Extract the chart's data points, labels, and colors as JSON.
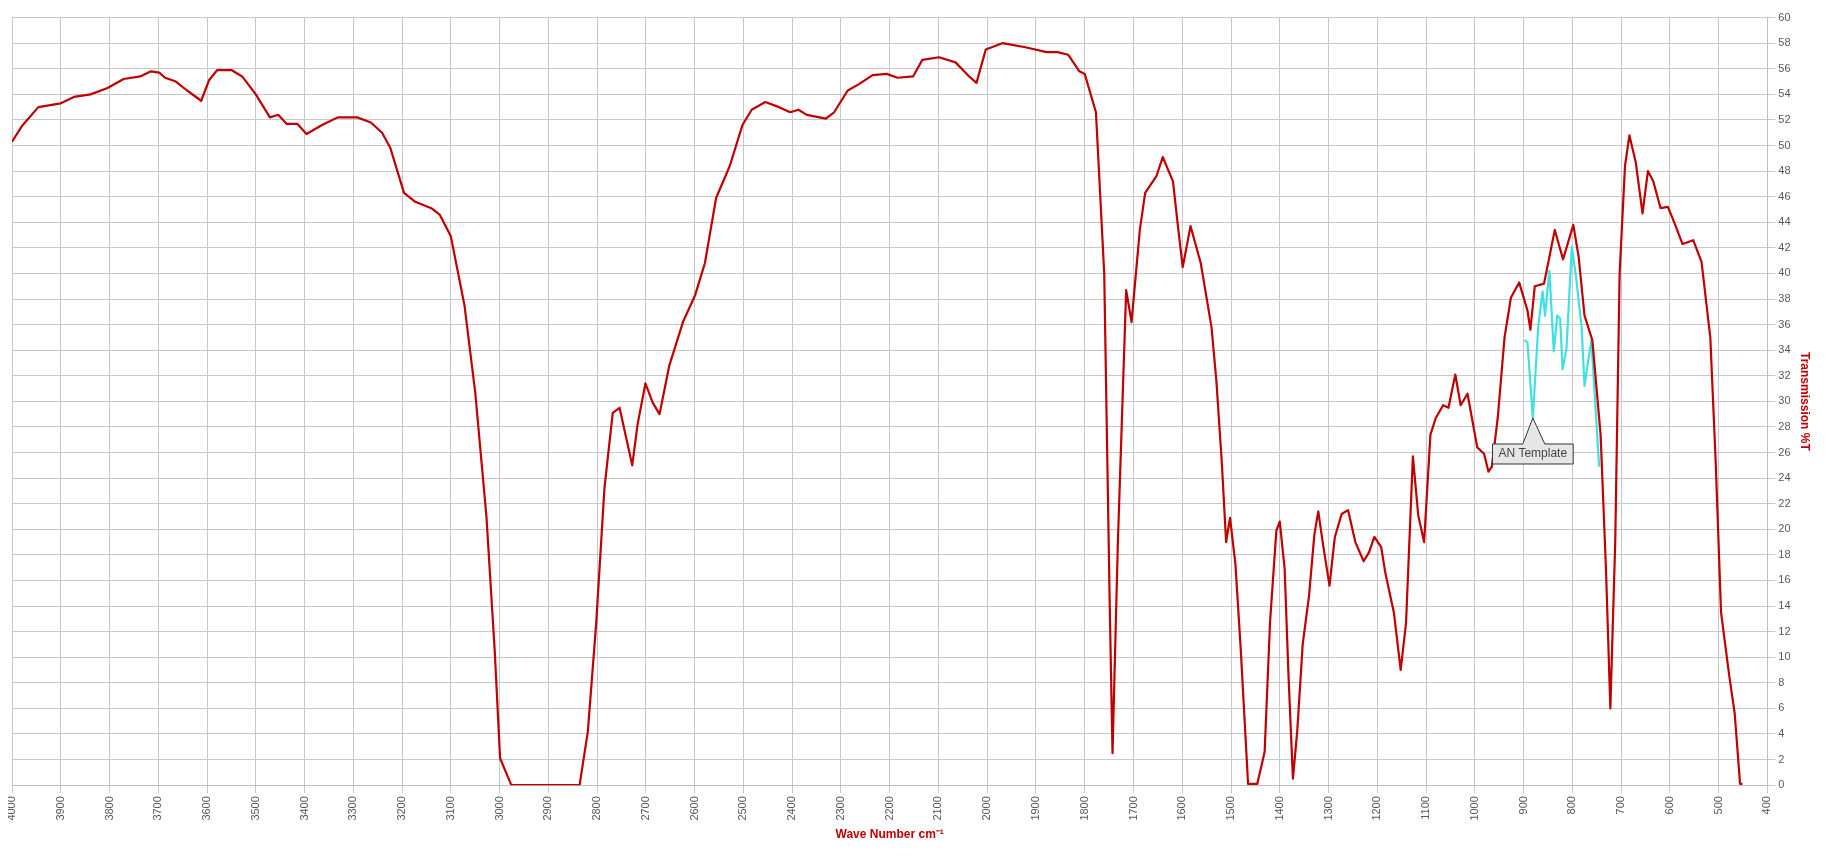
{
  "chart_data": {
    "type": "line",
    "xlabel": "Wave Number cm⁻¹",
    "ylabel": "Transmission %T",
    "xlim": [
      4000,
      400
    ],
    "ylim": [
      0,
      60
    ],
    "xticks": [
      4000,
      3900,
      3800,
      3700,
      3600,
      3500,
      3400,
      3300,
      3200,
      3100,
      3000,
      2900,
      2800,
      2700,
      2600,
      2500,
      2400,
      2300,
      2200,
      2100,
      2000,
      1900,
      1800,
      1700,
      1600,
      1500,
      1400,
      1300,
      1200,
      1100,
      1000,
      900,
      800,
      700,
      600,
      500,
      400
    ],
    "yticks": [
      0,
      2,
      4,
      6,
      8,
      10,
      12,
      14,
      16,
      18,
      20,
      22,
      24,
      26,
      28,
      30,
      32,
      34,
      36,
      38,
      40,
      42,
      44,
      46,
      48,
      50,
      52,
      54,
      56,
      58,
      60
    ],
    "grid": true,
    "legend": false,
    "marker": "none",
    "line_style": "solid",
    "annotations": [
      {
        "text": "AN Template",
        "x": 881,
        "y": 28.7
      }
    ],
    "series": [
      {
        "color": "#c00000",
        "x": [
          4000,
          3980,
          3946,
          3900,
          3873,
          3839,
          3804,
          3771,
          3737,
          3715,
          3698,
          3686,
          3664,
          3641,
          3612,
          3596,
          3579,
          3550,
          3528,
          3500,
          3471,
          3454,
          3437,
          3415,
          3396,
          3364,
          3332,
          3292,
          3264,
          3241,
          3224,
          3196,
          3173,
          3140,
          3123,
          3100,
          3072,
          3050,
          3027,
          3010,
          2999,
          2976,
          2836,
          2819,
          2802,
          2785,
          2768,
          2754,
          2728,
          2717,
          2701,
          2686,
          2672,
          2652,
          2624,
          2599,
          2579,
          2556,
          2528,
          2502,
          2483,
          2455,
          2427,
          2404,
          2387,
          2370,
          2331,
          2314,
          2286,
          2263,
          2235,
          2206,
          2184,
          2152,
          2133,
          2099,
          2065,
          2037,
          2022,
          2003,
          1969,
          1924,
          1878,
          1856,
          1834,
          1811,
          1800,
          1777,
          1760,
          1749,
          1743,
          1732,
          1715,
          1704,
          1687,
          1676,
          1653,
          1640,
          1619,
          1608,
          1599,
          1583,
          1562,
          1540,
          1530,
          1519,
          1510,
          1502,
          1491,
          1480,
          1465,
          1446,
          1431,
          1420,
          1407,
          1400,
          1390,
          1382,
          1373,
          1364,
          1353,
          1340,
          1329,
          1321,
          1312,
          1298,
          1287,
          1273,
          1260,
          1245,
          1228,
          1217,
          1206,
          1192,
          1183,
          1166,
          1152,
          1141,
          1127,
          1116,
          1104,
          1091,
          1080,
          1065,
          1054,
          1040,
          1029,
          1015,
          995,
          981,
          972,
          965,
          953,
          939,
          926,
          909,
          892,
          886,
          877,
          858,
          836,
          819,
          798,
          787,
          775,
          759,
          742,
          731,
          722,
          712,
          703,
          692,
          683,
          670,
          656,
          645,
          634,
          619,
          604,
          589,
          574,
          552,
          535,
          517,
          506,
          495,
          478,
          467,
          456,
          451
        ],
        "values": [
          50.3,
          51.5,
          53,
          53.3,
          53.8,
          54,
          54.5,
          55.2,
          55.4,
          55.8,
          55.7,
          55.3,
          55,
          54.3,
          53.5,
          55.1,
          55.9,
          55.9,
          55.4,
          54,
          52.2,
          52.4,
          51.7,
          51.7,
          50.9,
          51.6,
          52.2,
          52.2,
          51.8,
          51,
          49.8,
          46.3,
          45.6,
          45.1,
          44.6,
          42.9,
          37.5,
          30.7,
          21,
          10.5,
          2.1,
          0,
          0,
          4.2,
          12.6,
          23.2,
          29.1,
          29.5,
          25,
          28.2,
          31.4,
          29.9,
          29,
          32.8,
          36.2,
          38.3,
          40.8,
          45.9,
          48.4,
          51.6,
          52.8,
          53.4,
          53,
          52.6,
          52.8,
          52.4,
          52.1,
          52.6,
          54.3,
          54.8,
          55.5,
          55.6,
          55.3,
          55.4,
          56.7,
          56.9,
          56.5,
          55.4,
          54.9,
          57.5,
          58,
          57.7,
          57.3,
          57.3,
          57.1,
          55.8,
          55.6,
          52.6,
          40,
          14.7,
          2.5,
          19,
          38.7,
          36.2,
          43.4,
          46.3,
          47.6,
          49.1,
          47.2,
          43.4,
          40.5,
          43.7,
          40.8,
          35.8,
          31.6,
          25.3,
          19,
          20.9,
          17.3,
          10.6,
          0.1,
          0.1,
          2.6,
          12.7,
          19.9,
          20.6,
          16.9,
          8.5,
          0.5,
          4.3,
          11,
          14.8,
          19.6,
          21.4,
          19,
          15.6,
          19.4,
          21.2,
          21.5,
          19,
          17.5,
          18.2,
          19.4,
          18.6,
          16.5,
          13.5,
          9,
          12.7,
          25.7,
          21.1,
          19,
          27.4,
          28.7,
          29.7,
          29.5,
          32.1,
          29.7,
          30.6,
          26.4,
          25.9,
          24.5,
          24.9,
          28.7,
          35,
          38.1,
          39.3,
          37.1,
          35.6,
          39,
          39.2,
          43.4,
          41.1,
          43.8,
          41.3,
          36.7,
          34.8,
          27.4,
          16.9,
          6,
          19,
          40,
          48.4,
          50.8,
          48.7,
          44.7,
          48,
          47.2,
          45.1,
          45.2,
          43.8,
          42.3,
          42.6,
          40.9,
          35,
          25.3,
          13.5,
          8.5,
          5.6,
          0.1,
          0.1
        ]
      },
      {
        "color": "#40e0e0",
        "x": [
          898,
          892,
          881,
          870,
          861,
          856,
          847,
          838,
          831,
          825,
          820,
          812,
          801,
          792,
          781,
          775,
          770,
          761,
          753,
          745
        ],
        "values": [
          34.8,
          34.6,
          28.7,
          35.8,
          38.6,
          36.7,
          40.2,
          33.9,
          36.7,
          36.5,
          32.5,
          34.1,
          42.1,
          39.6,
          35.8,
          31.2,
          32.5,
          34.8,
          29.9,
          24.9
        ]
      }
    ]
  }
}
